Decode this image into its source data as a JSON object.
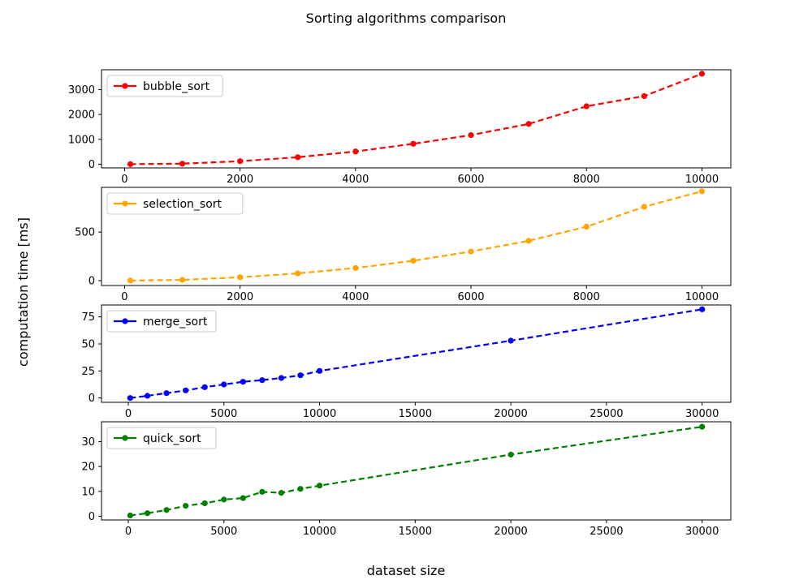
{
  "figure": {
    "title": "Sorting algorithms comparison",
    "xlabel": "dataset size",
    "ylabel": "computation time [ms]"
  },
  "chart_data": [
    {
      "type": "line",
      "line_style": "dashed",
      "marker": "circle",
      "color": "#ff0000",
      "series": [
        {
          "name": "bubble_sort",
          "x": [
            100,
            1000,
            2000,
            3000,
            4000,
            5000,
            6000,
            7000,
            8000,
            9000,
            10000
          ],
          "values": [
            1,
            20,
            120,
            280,
            510,
            820,
            1170,
            1620,
            2330,
            2740,
            3640
          ]
        }
      ],
      "xlim": [
        -400,
        10500
      ],
      "ylim": [
        -150,
        3800
      ],
      "xticks": [
        0,
        2000,
        4000,
        6000,
        8000,
        10000
      ],
      "yticks": [
        0,
        1000,
        2000,
        3000
      ],
      "legend": "upper-left"
    },
    {
      "type": "line",
      "line_style": "dashed",
      "marker": "circle",
      "color": "#ffa500",
      "series": [
        {
          "name": "selection_sort",
          "x": [
            100,
            1000,
            2000,
            3000,
            4000,
            5000,
            6000,
            7000,
            8000,
            9000,
            10000
          ],
          "values": [
            1,
            8,
            35,
            75,
            130,
            205,
            300,
            410,
            555,
            760,
            920
          ]
        }
      ],
      "xlim": [
        -400,
        10500
      ],
      "ylim": [
        -50,
        960
      ],
      "xticks": [
        0,
        2000,
        4000,
        6000,
        8000,
        10000
      ],
      "yticks": [
        0,
        500
      ],
      "legend": "upper-left"
    },
    {
      "type": "line",
      "line_style": "dashed",
      "marker": "circle",
      "color": "#0000ff",
      "series": [
        {
          "name": "merge_sort",
          "x": [
            100,
            1000,
            2000,
            3000,
            4000,
            5000,
            6000,
            7000,
            8000,
            9000,
            10000,
            20000,
            30000
          ],
          "values": [
            0,
            2,
            4.5,
            7,
            10,
            12.5,
            15,
            16.5,
            18.5,
            21,
            25,
            53,
            82
          ]
        }
      ],
      "xlim": [
        -1400,
        31500
      ],
      "ylim": [
        -4,
        86
      ],
      "xticks": [
        0,
        5000,
        10000,
        15000,
        20000,
        25000,
        30000
      ],
      "yticks": [
        0,
        25,
        50,
        75
      ],
      "legend": "upper-left"
    },
    {
      "type": "line",
      "line_style": "dashed",
      "marker": "circle",
      "color": "#008000",
      "series": [
        {
          "name": "quick_sort",
          "x": [
            100,
            1000,
            2000,
            3000,
            4000,
            5000,
            6000,
            7000,
            8000,
            9000,
            10000,
            20000,
            30000
          ],
          "values": [
            0.3,
            1.2,
            2.5,
            4.2,
            5.2,
            6.7,
            7.3,
            9.8,
            9.4,
            11,
            12.3,
            24.8,
            36
          ]
        }
      ],
      "xlim": [
        -1400,
        31500
      ],
      "ylim": [
        -1.5,
        38
      ],
      "xticks": [
        0,
        5000,
        10000,
        15000,
        20000,
        25000,
        30000
      ],
      "yticks": [
        0,
        10,
        20,
        30
      ],
      "legend": "upper-left"
    }
  ]
}
